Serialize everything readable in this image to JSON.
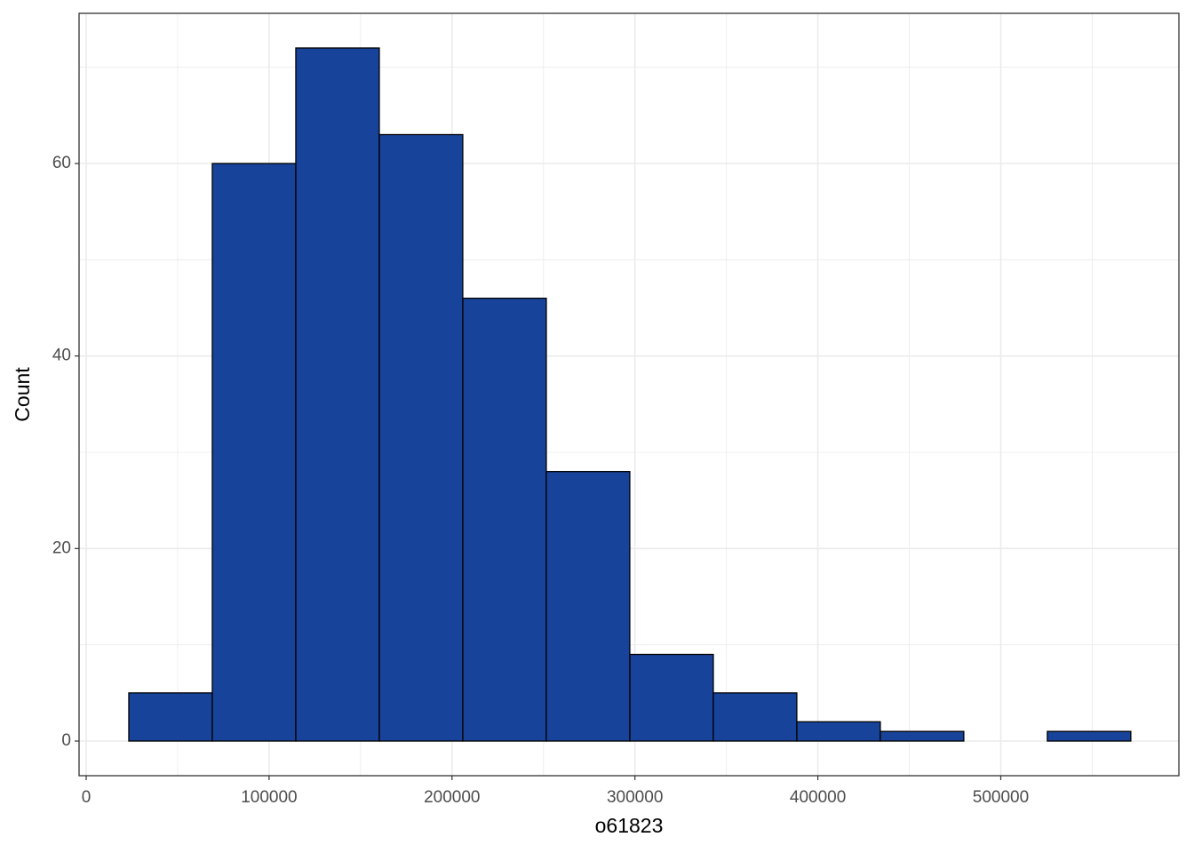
{
  "chart_data": {
    "type": "histogram",
    "x_label": "o61823",
    "y_label": "Count",
    "bins": [
      23300,
      68950,
      114600,
      160250,
      205900,
      251550,
      297200,
      342850,
      388500,
      434150,
      479800,
      525450,
      571100
    ],
    "values": [
      5,
      60,
      72,
      63,
      46,
      28,
      9,
      5,
      2,
      1,
      0,
      1
    ],
    "color": "#18439a",
    "edge_color": "#000000",
    "xlim": [
      -3885,
      597380
    ],
    "ylim": [
      -3.6,
      75.6
    ],
    "xticks": [
      0,
      100000,
      200000,
      300000,
      400000,
      500000
    ],
    "yticks": [
      0,
      20,
      40,
      60
    ],
    "grid": true,
    "minor_grid": true
  }
}
